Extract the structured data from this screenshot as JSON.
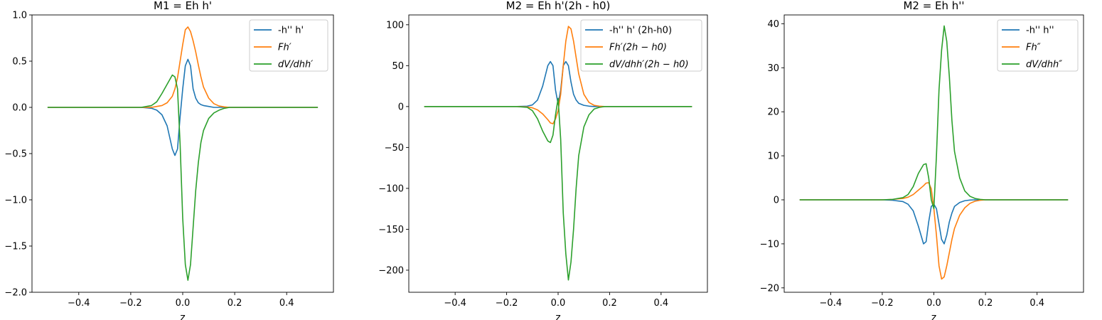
{
  "chart_data": [
    {
      "type": "line",
      "title": "M1 = Eh h'",
      "xlabel": "z",
      "ylabel": "",
      "xlim": [
        -0.58,
        0.58
      ],
      "ylim": [
        -2.0,
        1.0
      ],
      "xticks": [
        -0.4,
        -0.2,
        0.0,
        0.2,
        0.4
      ],
      "xtick_labels": [
        "−0.4",
        "−0.2",
        "0.0",
        "0.2",
        "0.4"
      ],
      "yticks": [
        1.0,
        0.5,
        0.0,
        -0.5,
        -1.0,
        -1.5,
        -2.0
      ],
      "ytick_labels": [
        "1.0",
        "0.5",
        "0.0",
        "−0.5",
        "−1.0",
        "−1.5",
        "−2.0"
      ],
      "legend_position": "upper-right",
      "x": [
        -0.52,
        -0.4,
        -0.3,
        -0.2,
        -0.16,
        -0.12,
        -0.1,
        -0.08,
        -0.06,
        -0.04,
        -0.03,
        -0.02,
        -0.01,
        0.0,
        0.01,
        0.02,
        0.03,
        0.04,
        0.05,
        0.06,
        0.07,
        0.08,
        0.1,
        0.12,
        0.14,
        0.16,
        0.18,
        0.2,
        0.25,
        0.3,
        0.4,
        0.52
      ],
      "series": [
        {
          "name": "-h'' h'",
          "color": "#1f77b4",
          "values": [
            0,
            0,
            0,
            0,
            0,
            -0.01,
            -0.03,
            -0.08,
            -0.2,
            -0.45,
            -0.52,
            -0.45,
            -0.1,
            0.2,
            0.45,
            0.52,
            0.45,
            0.2,
            0.1,
            0.05,
            0.03,
            0.02,
            0.01,
            0,
            0,
            0,
            0,
            0,
            0,
            0,
            0,
            0
          ]
        },
        {
          "name": "Fh′",
          "color": "#ff7f0e",
          "values": [
            0,
            0,
            0,
            0,
            0,
            0,
            0.01,
            0.02,
            0.05,
            0.12,
            0.2,
            0.32,
            0.5,
            0.68,
            0.84,
            0.87,
            0.82,
            0.72,
            0.6,
            0.46,
            0.33,
            0.22,
            0.1,
            0.04,
            0.015,
            0.005,
            0,
            0,
            0,
            0,
            0,
            0
          ]
        },
        {
          "name": "dV/dhh′",
          "color": "#2ca02c",
          "values": [
            0,
            0,
            0,
            0,
            0,
            0.02,
            0.06,
            0.15,
            0.25,
            0.35,
            0.33,
            0.2,
            -0.4,
            -1.2,
            -1.7,
            -1.87,
            -1.7,
            -1.3,
            -0.9,
            -0.6,
            -0.38,
            -0.25,
            -0.12,
            -0.06,
            -0.03,
            -0.01,
            0,
            0,
            0,
            0,
            0,
            0
          ]
        }
      ]
    },
    {
      "type": "line",
      "title": "M2 = Eh h'(2h - h0)",
      "xlabel": "z",
      "ylabel": "",
      "xlim": [
        -0.58,
        0.58
      ],
      "ylim": [
        -227,
        112
      ],
      "xticks": [
        -0.4,
        -0.2,
        0.0,
        0.2,
        0.4
      ],
      "xtick_labels": [
        "−0.4",
        "−0.2",
        "0.0",
        "0.2",
        "0.4"
      ],
      "yticks": [
        100,
        50,
        0,
        -50,
        -100,
        -150,
        -200
      ],
      "ytick_labels": [
        "100",
        "50",
        "0",
        "−50",
        "−100",
        "−150",
        "−200"
      ],
      "legend_position": "upper-right",
      "x": [
        -0.52,
        -0.4,
        -0.3,
        -0.2,
        -0.16,
        -0.12,
        -0.1,
        -0.08,
        -0.06,
        -0.04,
        -0.03,
        -0.02,
        -0.01,
        0.0,
        0.01,
        0.02,
        0.03,
        0.04,
        0.05,
        0.06,
        0.07,
        0.08,
        0.1,
        0.12,
        0.14,
        0.16,
        0.18,
        0.2,
        0.25,
        0.3,
        0.4,
        0.52
      ],
      "series": [
        {
          "name": "-h'' h' (2h-h0)",
          "color": "#1f77b4",
          "values": [
            0,
            0,
            0,
            0,
            0,
            0.5,
            2,
            8,
            25,
            50,
            55,
            50,
            20,
            3,
            20,
            50,
            55,
            50,
            30,
            15,
            8,
            4,
            1.5,
            0.5,
            0,
            0,
            0,
            0,
            0,
            0,
            0,
            0
          ]
        },
        {
          "name": "Fh′(2h − h0)",
          "color": "#ff7f0e",
          "values": [
            0,
            0,
            0,
            0,
            0,
            -0.5,
            -1.5,
            -4,
            -9,
            -16,
            -20,
            -21,
            -15,
            -5,
            15,
            50,
            80,
            98,
            95,
            80,
            60,
            40,
            15,
            5,
            1.5,
            0.5,
            0,
            0,
            0,
            0,
            0,
            0
          ]
        },
        {
          "name": "dV/dhh′(2h − h0)",
          "color": "#2ca02c",
          "values": [
            0,
            0,
            0,
            0,
            0,
            -1,
            -5,
            -15,
            -30,
            -42,
            -44,
            -35,
            -10,
            10,
            -40,
            -130,
            -180,
            -212,
            -190,
            -150,
            -100,
            -60,
            -25,
            -10,
            -3,
            -1,
            0,
            0,
            0,
            0,
            0,
            0
          ]
        }
      ]
    },
    {
      "type": "line",
      "title": "M2 = Eh h''",
      "xlabel": "z",
      "ylabel": "",
      "xlim": [
        -0.58,
        0.58
      ],
      "ylim": [
        -21,
        42
      ],
      "xticks": [
        -0.4,
        -0.2,
        0.0,
        0.2,
        0.4
      ],
      "xtick_labels": [
        "−0.4",
        "−0.2",
        "0.0",
        "0.2",
        "0.4"
      ],
      "yticks": [
        40,
        30,
        20,
        10,
        0,
        -10,
        -20
      ],
      "ytick_labels": [
        "40",
        "30",
        "20",
        "10",
        "0",
        "−10",
        "−20"
      ],
      "legend_position": "upper-right",
      "x": [
        -0.52,
        -0.4,
        -0.3,
        -0.2,
        -0.16,
        -0.12,
        -0.1,
        -0.08,
        -0.06,
        -0.04,
        -0.03,
        -0.02,
        -0.01,
        0.0,
        0.01,
        0.02,
        0.03,
        0.04,
        0.05,
        0.06,
        0.07,
        0.08,
        0.1,
        0.12,
        0.14,
        0.16,
        0.18,
        0.2,
        0.25,
        0.3,
        0.4,
        0.52
      ],
      "series": [
        {
          "name": "-h'' h''",
          "color": "#1f77b4",
          "values": [
            0,
            0,
            0,
            0,
            -0.1,
            -0.4,
            -1,
            -2.5,
            -6,
            -10,
            -9.5,
            -5,
            -1.5,
            -1,
            -2,
            -5.5,
            -9,
            -10,
            -8,
            -5,
            -3,
            -1.5,
            -0.6,
            -0.2,
            -0.05,
            0,
            0,
            0,
            0,
            0,
            0,
            0
          ]
        },
        {
          "name": "Fh″",
          "color": "#ff7f0e",
          "values": [
            0,
            0,
            0,
            0,
            0.1,
            0.3,
            0.6,
            1.2,
            2.2,
            3.2,
            3.8,
            3.9,
            2.5,
            -2,
            -8,
            -15,
            -18,
            -17.5,
            -15,
            -12,
            -9,
            -6.5,
            -3.5,
            -1.8,
            -0.8,
            -0.3,
            -0.1,
            0,
            0,
            0,
            0,
            0
          ]
        },
        {
          "name": "dV/dhh″",
          "color": "#2ca02c",
          "values": [
            0,
            0,
            0,
            0,
            0.1,
            0.5,
            1.2,
            3,
            6,
            8,
            8.2,
            5,
            0,
            -2,
            10,
            25,
            34,
            39.5,
            36,
            28,
            18,
            11,
            5,
            2,
            0.8,
            0.3,
            0.1,
            0,
            0,
            0,
            0,
            0
          ]
        }
      ]
    }
  ]
}
